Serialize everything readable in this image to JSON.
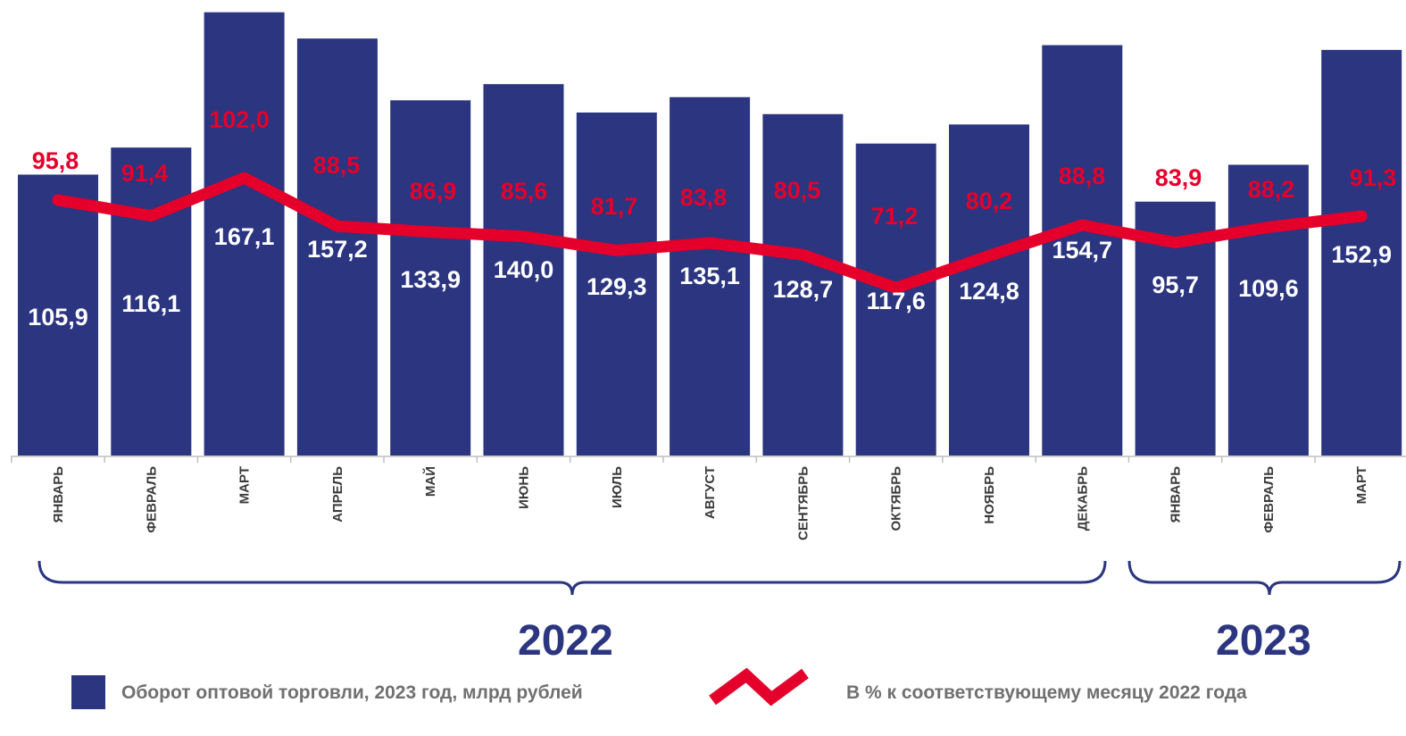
{
  "chart_data": {
    "type": "bar+line",
    "categories": [
      "ЯНВАРЬ",
      "ФЕВРАЛЬ",
      "МАРТ",
      "АПРЕЛЬ",
      "МАЙ",
      "ИЮНЬ",
      "ИЮЛЬ",
      "АВГУСТ",
      "СЕНТЯБРЬ",
      "ОКТЯБРЬ",
      "НОЯБРЬ",
      "ДЕКАБРЬ",
      "ЯНВАРЬ",
      "ФЕВРАЛЬ",
      "МАРТ"
    ],
    "series": [
      {
        "name": "Оборот оптовой торговли, 2023 год, млрд рублей",
        "type": "bar",
        "color": "#2b3580",
        "values": [
          105.9,
          116.1,
          167.1,
          157.2,
          133.9,
          140.0,
          129.3,
          135.1,
          128.7,
          117.6,
          124.8,
          154.7,
          95.7,
          109.6,
          152.9
        ],
        "labels": [
          "105,9",
          "116,1",
          "167,1",
          "157,2",
          "133,9",
          "140,0",
          "129,3",
          "135,1",
          "128,7",
          "117,6",
          "124,8",
          "154,7",
          "95,7",
          "109,6",
          "152,9"
        ]
      },
      {
        "name": "В % к соответствующему месяцу  2022 года",
        "type": "line",
        "color": "#e4002b",
        "values": [
          95.8,
          91.4,
          102.0,
          88.5,
          86.9,
          85.6,
          81.7,
          83.8,
          80.5,
          71.2,
          80.2,
          88.8,
          83.9,
          88.2,
          91.3
        ],
        "labels": [
          "95,8",
          "91,4",
          "102,0",
          "88,5",
          "86,9",
          "85,6",
          "81,7",
          "83,8",
          "80,5",
          "71,2",
          "80,2",
          "88,8",
          "83,9",
          "88,2",
          "91,3"
        ]
      }
    ],
    "groups": [
      {
        "label": "2022",
        "from": 0,
        "to": 11
      },
      {
        "label": "2023",
        "from": 12,
        "to": 14
      }
    ],
    "legend_position": "bottom"
  }
}
